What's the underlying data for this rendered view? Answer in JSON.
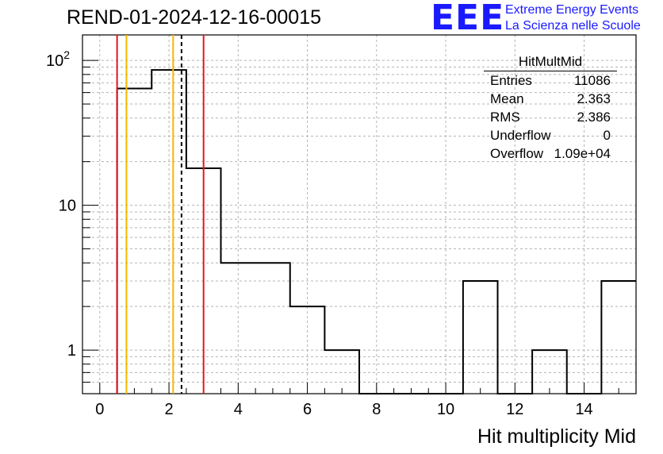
{
  "title": "REND-01-2024-12-16-00015",
  "logo": {
    "mark": "EEE",
    "line1": "Extreme Energy Events",
    "line2": "La Scienza nelle Scuole",
    "color": "#1a1aff"
  },
  "stats": {
    "title": "HitMultMid",
    "rows": [
      {
        "name": "Entries",
        "value": "11086"
      },
      {
        "name": "Mean",
        "value": "2.363"
      },
      {
        "name": "RMS",
        "value": "2.386"
      },
      {
        "name": "Underflow",
        "value": "0"
      },
      {
        "name": "Overflow",
        "value": "1.09e+04"
      }
    ]
  },
  "chart_data": {
    "type": "histogram",
    "title": "REND-01-2024-12-16-00015",
    "xlabel": "Hit multiplicity Mid",
    "ylabel": "",
    "xlim": [
      -0.5,
      15.5
    ],
    "ylim": [
      0.5,
      150
    ],
    "yscale": "log",
    "grid": true,
    "xticks": [
      0,
      2,
      4,
      6,
      8,
      10,
      12,
      14
    ],
    "yticks": [
      {
        "value": 1,
        "label": "1"
      },
      {
        "value": 10,
        "label": "10"
      },
      {
        "value": 100,
        "label": "10",
        "sup": "2"
      }
    ],
    "bins": {
      "edges": [
        0.5,
        1.5,
        2.5,
        3.5,
        4.5,
        5.5,
        6.5,
        7.5,
        8.5,
        9.5,
        10.5,
        11.5,
        12.5,
        13.5,
        14.5,
        15.5
      ],
      "counts": [
        64,
        86,
        18,
        4,
        4,
        2,
        1,
        0,
        0,
        0,
        3,
        0,
        1,
        0,
        3
      ]
    },
    "vlines": [
      {
        "x": 0.5,
        "color": "#e8141e",
        "style": "solid"
      },
      {
        "x": 0.77,
        "color": "#f5b800",
        "style": "solid"
      },
      {
        "x": 2.12,
        "color": "#f5b800",
        "style": "solid"
      },
      {
        "x": 2.363,
        "color": "#000000",
        "style": "dashed"
      },
      {
        "x": 3.0,
        "color": "#e8141e",
        "style": "solid"
      }
    ]
  }
}
